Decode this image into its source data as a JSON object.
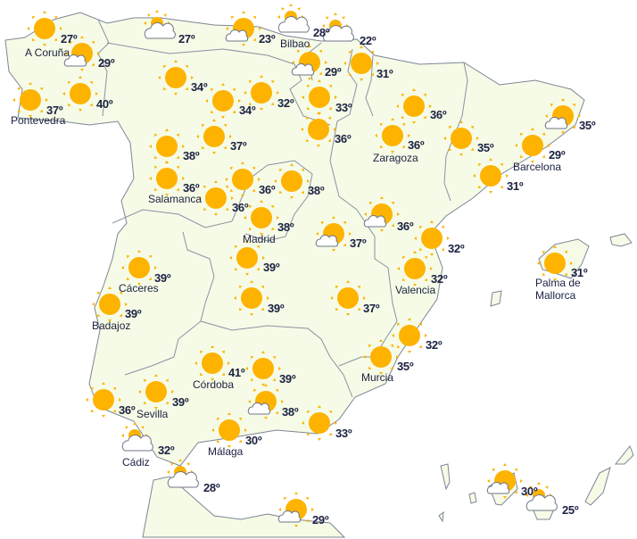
{
  "colors": {
    "land": "#f5fbe6",
    "sun": "#fdb300",
    "cloud": "#ffffff",
    "text": "#1b2140",
    "border": "#8a92a3"
  },
  "stations": [
    {
      "temp": "27º",
      "city": "A Coruña",
      "icon": "sun"
    },
    {
      "temp": "29º",
      "icon": "sun-cloud"
    },
    {
      "temp": "37º",
      "city": "Pontevedra",
      "icon": "sun"
    },
    {
      "temp": "40º",
      "icon": "sun"
    },
    {
      "temp": "27º",
      "icon": "cloud-sun"
    },
    {
      "temp": "23º",
      "icon": "sun-cloud"
    },
    {
      "temp": "28º",
      "city": "Bilbao",
      "icon": "cloud-sun"
    },
    {
      "temp": "22º",
      "icon": "cloud-sun"
    },
    {
      "temp": "29º",
      "icon": "sun-cloud"
    },
    {
      "temp": "31º",
      "icon": "sun"
    },
    {
      "temp": "34º",
      "icon": "sun"
    },
    {
      "temp": "34º",
      "icon": "sun"
    },
    {
      "temp": "32º",
      "icon": "sun"
    },
    {
      "temp": "33º",
      "icon": "sun"
    },
    {
      "temp": "36º",
      "icon": "sun"
    },
    {
      "temp": "36º",
      "icon": "sun"
    },
    {
      "temp": "36º",
      "city": "Zaragoza",
      "icon": "sun"
    },
    {
      "temp": "35º",
      "icon": "sun"
    },
    {
      "temp": "35º",
      "icon": "sun-cloud"
    },
    {
      "temp": "29º",
      "city": "Barcelona",
      "icon": "sun"
    },
    {
      "temp": "31º",
      "icon": "sun"
    },
    {
      "temp": "38º",
      "icon": "sun"
    },
    {
      "temp": "37º",
      "icon": "sun"
    },
    {
      "temp": "36º",
      "city": "Salamanca",
      "icon": "sun"
    },
    {
      "temp": "36º",
      "icon": "sun"
    },
    {
      "temp": "36º",
      "icon": "sun"
    },
    {
      "temp": "38º",
      "icon": "sun"
    },
    {
      "temp": "38º",
      "city": "Madrid",
      "icon": "sun"
    },
    {
      "temp": "36º",
      "icon": "sun-cloud"
    },
    {
      "temp": "37º",
      "icon": "sun-cloud"
    },
    {
      "temp": "32º",
      "icon": "sun"
    },
    {
      "temp": "39º",
      "icon": "sun"
    },
    {
      "temp": "32º",
      "city": "Valencia",
      "icon": "sun"
    },
    {
      "temp": "31º",
      "city": "Palma de Mallorca",
      "icon": "sun"
    },
    {
      "temp": "39º",
      "city": "Cáceres",
      "icon": "sun"
    },
    {
      "temp": "39º",
      "city": "Badajoz",
      "icon": "sun"
    },
    {
      "temp": "39º",
      "icon": "sun"
    },
    {
      "temp": "37º",
      "icon": "sun"
    },
    {
      "temp": "32º",
      "icon": "sun"
    },
    {
      "temp": "35º",
      "city": "Murcia",
      "icon": "sun"
    },
    {
      "temp": "41º",
      "city": "Córdoba",
      "icon": "sun"
    },
    {
      "temp": "39º",
      "icon": "sun"
    },
    {
      "temp": "38º",
      "icon": "sun-cloud"
    },
    {
      "temp": "36º",
      "icon": "sun"
    },
    {
      "temp": "39º",
      "city": "Sevilla",
      "icon": "sun"
    },
    {
      "temp": "33º",
      "icon": "sun"
    },
    {
      "temp": "30º",
      "city": "Málaga",
      "icon": "sun"
    },
    {
      "temp": "32º",
      "city": "Cádiz",
      "icon": "cloud-sun"
    },
    {
      "temp": "28º",
      "icon": "cloud-sun"
    },
    {
      "temp": "29º",
      "icon": "sun-cloud"
    },
    {
      "temp": "30º",
      "icon": "sun-cloud"
    },
    {
      "temp": "25º",
      "icon": "cloud-sun"
    }
  ]
}
